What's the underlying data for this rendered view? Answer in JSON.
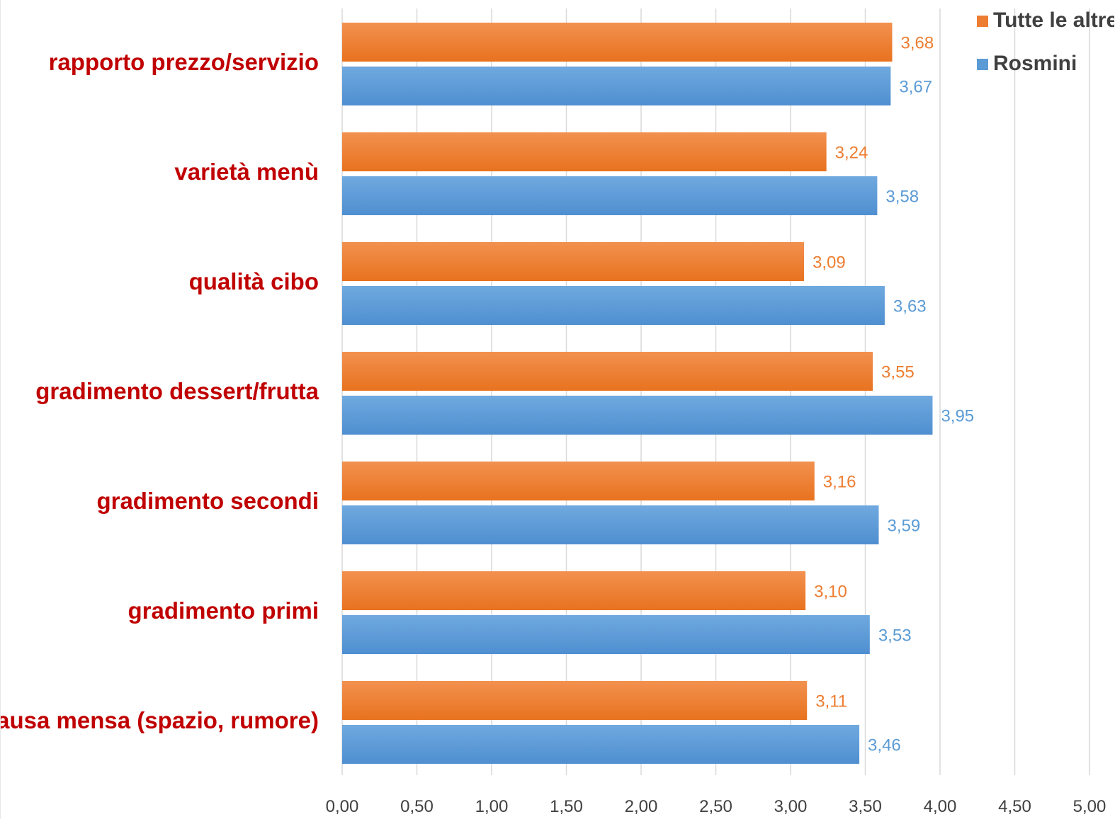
{
  "chart_data": {
    "type": "bar",
    "orientation": "horizontal",
    "categories": [
      "rapporto prezzo/servizio",
      "varietà menù",
      "qualità cibo",
      "gradimento dessert/frutta",
      "gradimento secondi",
      "gradimento primi",
      "pausa mensa (spazio, rumore)"
    ],
    "series": [
      {
        "name": "Tutte le altre",
        "color": "#ed7d31",
        "values": [
          3.68,
          3.24,
          3.09,
          3.55,
          3.16,
          3.1,
          3.11
        ],
        "labels": [
          "3,68",
          "3,24",
          "3,09",
          "3,55",
          "3,16",
          "3,10",
          "3,11"
        ]
      },
      {
        "name": "Rosmini",
        "color": "#5b9bd5",
        "values": [
          3.67,
          3.58,
          3.63,
          3.95,
          3.59,
          3.53,
          3.46
        ],
        "labels": [
          "3,67",
          "3,58",
          "3,63",
          "3,95",
          "3,59",
          "3,53",
          "3,46"
        ]
      }
    ],
    "xlim": [
      0,
      5
    ],
    "x_ticks": [
      0,
      0.5,
      1,
      1.5,
      2,
      2.5,
      3,
      3.5,
      4,
      4.5,
      5
    ],
    "x_tick_labels": [
      "0,00",
      "0,50",
      "1,00",
      "1,50",
      "2,00",
      "2,50",
      "3,00",
      "3,50",
      "4,00",
      "4,50",
      "5,00"
    ],
    "title": "",
    "xlabel": "",
    "ylabel": "",
    "grid": true,
    "legend_position": "top-right",
    "category_label_color": "#c00000"
  }
}
